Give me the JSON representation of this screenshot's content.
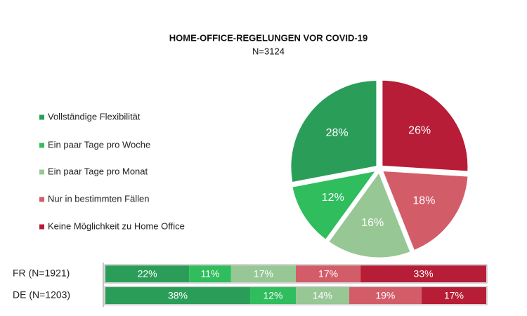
{
  "chart_data": [
    {
      "type": "pie",
      "title": "HOME-OFFICE-REGELUNGEN VOR COVID-19",
      "subtitle": "N=3124",
      "categories": [
        "Vollständige Flexibilität",
        "Ein paar Tage pro Woche",
        "Ein paar Tage pro Monat",
        "Nur in bestimmten Fällen",
        "Keine Möglichkeit zu Home Office"
      ],
      "values": [
        28,
        12,
        16,
        18,
        26
      ],
      "value_labels": [
        "28%",
        "12%",
        "16%",
        "18%",
        "26%"
      ],
      "colors": [
        "#2a9e59",
        "#2fbd5e",
        "#97c795",
        "#d35c69",
        "#b71d36"
      ]
    },
    {
      "type": "bar",
      "stacked": true,
      "orientation": "horizontal",
      "categories": [
        "FR (N=1921)",
        "DE (N=1203)"
      ],
      "series": [
        {
          "color": "#2a9e59",
          "values": [
            22,
            38
          ],
          "value_labels": [
            "22%",
            "38%"
          ]
        },
        {
          "color": "#2fbd5e",
          "values": [
            11,
            12
          ],
          "value_labels": [
            "11%",
            "12%"
          ]
        },
        {
          "color": "#97c795",
          "values": [
            17,
            14
          ],
          "value_labels": [
            "17%",
            "14%"
          ]
        },
        {
          "color": "#d35c69",
          "values": [
            17,
            19
          ],
          "value_labels": [
            "17%",
            "19%"
          ]
        },
        {
          "color": "#b71d36",
          "values": [
            33,
            17
          ],
          "value_labels": [
            "33%",
            "17%"
          ]
        }
      ]
    }
  ]
}
